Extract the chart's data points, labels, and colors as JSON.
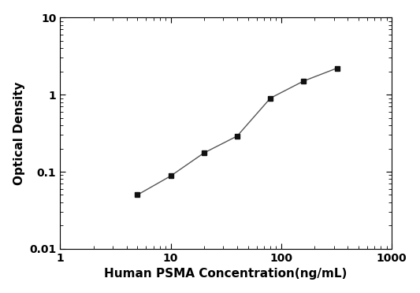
{
  "x": [
    5,
    10,
    20,
    40,
    80,
    160,
    320
  ],
  "y": [
    0.05,
    0.088,
    0.175,
    0.29,
    0.9,
    1.5,
    2.2
  ],
  "xlim": [
    1,
    1000
  ],
  "ylim": [
    0.01,
    10
  ],
  "xlabel": "Human PSMA Concentration(ng/mL)",
  "ylabel": "Optical Density",
  "line_color": "#555555",
  "marker": "s",
  "marker_color": "#111111",
  "marker_size": 5,
  "linewidth": 1.0,
  "background_color": "#ffffff",
  "font_family": "DejaVu Sans",
  "xlabel_fontsize": 11,
  "ylabel_fontsize": 11,
  "tick_labelsize": 10,
  "xticks": [
    1,
    10,
    100,
    1000
  ],
  "yticks": [
    0.01,
    0.1,
    1,
    10
  ]
}
